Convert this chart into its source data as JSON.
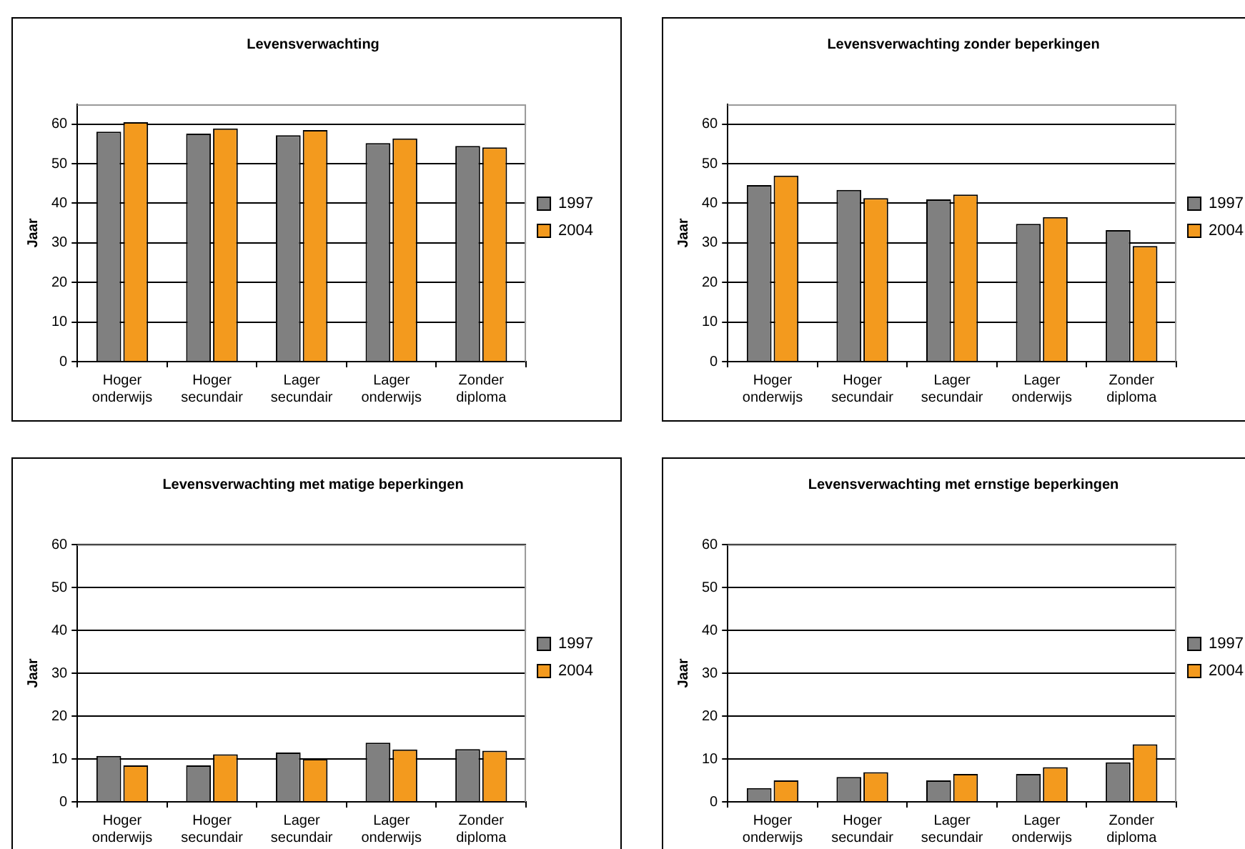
{
  "chart_data": [
    {
      "type": "bar",
      "title": "Levensverwachting",
      "ylabel": "Jaar",
      "categories": [
        "Hoger onderwijs",
        "Hoger secundair",
        "Lager secundair",
        "Lager onderwijs",
        "Zonder diploma"
      ],
      "series": [
        {
          "name": "1997",
          "color": "#808080",
          "values": [
            58.1,
            57.6,
            57.2,
            55.2,
            54.5
          ]
        },
        {
          "name": "2004",
          "color": "#f39a1e",
          "values": [
            60.5,
            58.9,
            58.5,
            56.4,
            54.1
          ]
        }
      ],
      "ylim": [
        0,
        65
      ],
      "yticks": [
        0,
        10,
        20,
        30,
        40,
        50,
        60
      ],
      "grid": "y",
      "legend": "right"
    },
    {
      "type": "bar",
      "title": "Levensverwachting zonder beperkingen",
      "ylabel": "Jaar",
      "categories": [
        "Hoger onderwijs",
        "Hoger secundair",
        "Lager secundair",
        "Lager onderwijs",
        "Zonder diploma"
      ],
      "series": [
        {
          "name": "1997",
          "color": "#808080",
          "values": [
            44.6,
            43.4,
            41.0,
            34.8,
            33.2
          ]
        },
        {
          "name": "2004",
          "color": "#f39a1e",
          "values": [
            47.0,
            41.3,
            42.2,
            36.5,
            29.2
          ]
        }
      ],
      "ylim": [
        0,
        65
      ],
      "yticks": [
        0,
        10,
        20,
        30,
        40,
        50,
        60
      ],
      "grid": "y",
      "legend": "right"
    },
    {
      "type": "bar",
      "title": "Levensverwachting met matige beperkingen",
      "ylabel": "Jaar",
      "categories": [
        "Hoger onderwijs",
        "Hoger secundair",
        "Lager secundair",
        "Lager onderwijs",
        "Zonder diploma"
      ],
      "series": [
        {
          "name": "1997",
          "color": "#808080",
          "values": [
            10.7,
            8.5,
            11.5,
            13.8,
            12.3
          ]
        },
        {
          "name": "2004",
          "color": "#f39a1e",
          "values": [
            8.5,
            11.1,
            10.0,
            12.2,
            11.9
          ]
        }
      ],
      "ylim": [
        0,
        60
      ],
      "yticks": [
        0,
        10,
        20,
        30,
        40,
        50,
        60
      ],
      "grid": "y",
      "legend": "right"
    },
    {
      "type": "bar",
      "title": "Levensverwachting met ernstige beperkingen",
      "ylabel": "Jaar",
      "categories": [
        "Hoger onderwijs",
        "Hoger secundair",
        "Lager secundair",
        "Lager onderwijs",
        "Zonder diploma"
      ],
      "series": [
        {
          "name": "1997",
          "color": "#808080",
          "values": [
            3.2,
            5.8,
            5.0,
            6.5,
            9.2
          ]
        },
        {
          "name": "2004",
          "color": "#f39a1e",
          "values": [
            5.0,
            6.9,
            6.5,
            8.1,
            13.4
          ]
        }
      ],
      "ylim": [
        0,
        60
      ],
      "yticks": [
        0,
        10,
        20,
        30,
        40,
        50,
        60
      ],
      "grid": "y",
      "legend": "right"
    }
  ]
}
